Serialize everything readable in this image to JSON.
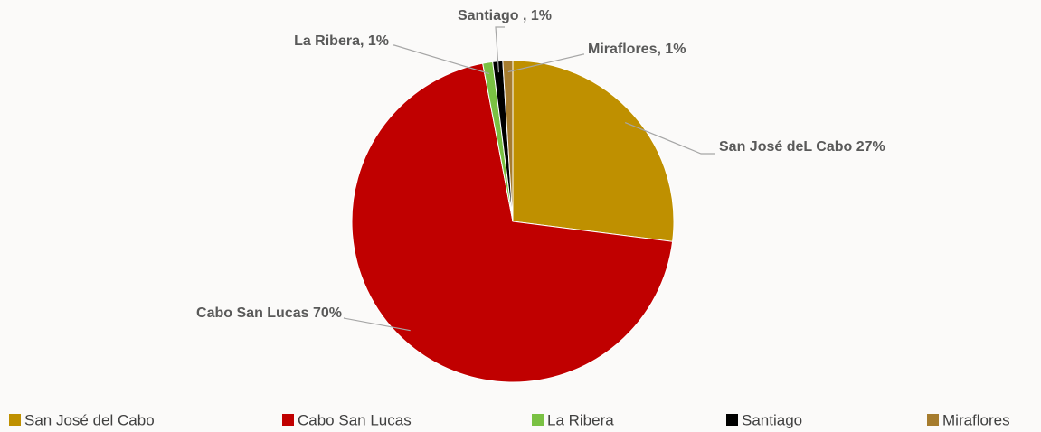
{
  "chart_data": {
    "type": "pie",
    "categories": [
      "San José del Cabo",
      "Cabo San Lucas",
      "La Ribera",
      "Santiago",
      "Miraflores"
    ],
    "values": [
      27,
      70,
      1,
      1,
      1
    ],
    "value_labels": [
      "San José deL Cabo 27%",
      "Cabo San Lucas 70%",
      "La Ribera, 1%",
      "Santiago , 1%",
      "Miraflores, 1%"
    ],
    "colors": [
      "#bf9000",
      "#c00000",
      "#7ac143",
      "#000000",
      "#a67c2e"
    ],
    "legend": "bottom"
  }
}
